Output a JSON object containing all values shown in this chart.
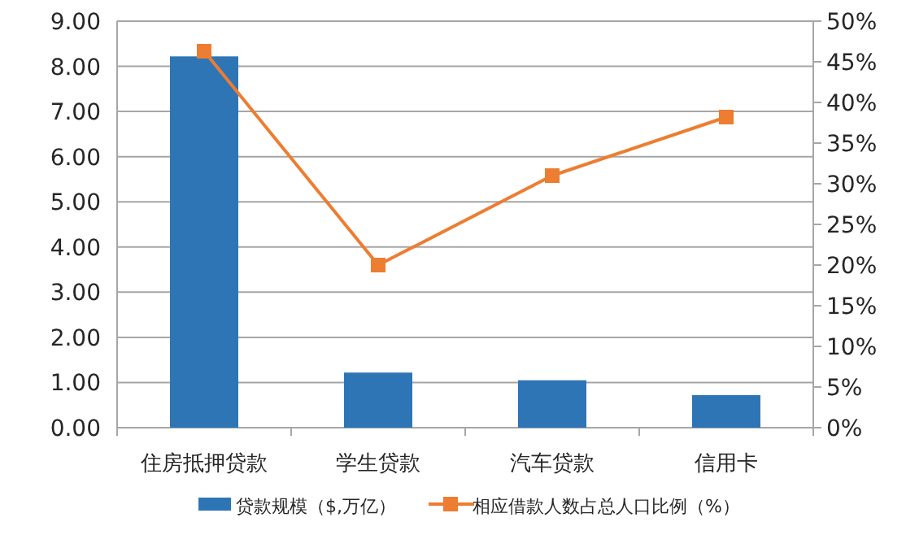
{
  "chart_data": {
    "type": "bar",
    "categories": [
      "住房抵押贷款",
      "学生贷款",
      "汽车贷款",
      "信用卡"
    ],
    "series": [
      {
        "name": "贷款规模（$,万亿）",
        "color": "#2e75b6",
        "values": [
          8.22,
          1.22,
          1.05,
          0.72
        ]
      },
      {
        "name": "相应借款人数占总人口比例（%）",
        "type": "line",
        "axis": "y2",
        "color": "#ed7d31",
        "marker": "square",
        "values": [
          46.3,
          20,
          31,
          38.2
        ]
      }
    ],
    "ylim": [
      0,
      9
    ],
    "yticks": [
      {
        "value": 0,
        "label": "0.00"
      },
      {
        "value": 1,
        "label": "1.00"
      },
      {
        "value": 2,
        "label": "2.00"
      },
      {
        "value": 3,
        "label": "3.00"
      },
      {
        "value": 4,
        "label": "4.00"
      },
      {
        "value": 5,
        "label": "5.00"
      },
      {
        "value": 6,
        "label": "6.00"
      },
      {
        "value": 7,
        "label": "7.00"
      },
      {
        "value": 8,
        "label": "8.00"
      },
      {
        "value": 9,
        "label": "9.00"
      }
    ],
    "y2lim": [
      0,
      50
    ],
    "y2ticks": [
      {
        "value": 0,
        "label": "0%"
      },
      {
        "value": 5,
        "label": "5%"
      },
      {
        "value": 10,
        "label": "10%"
      },
      {
        "value": 15,
        "label": "15%"
      },
      {
        "value": 20,
        "label": "20%"
      },
      {
        "value": 25,
        "label": "25%"
      },
      {
        "value": 30,
        "label": "30%"
      },
      {
        "value": 35,
        "label": "35%"
      },
      {
        "value": 40,
        "label": "40%"
      },
      {
        "value": 45,
        "label": "45%"
      },
      {
        "value": 50,
        "label": "50%"
      }
    ],
    "grid": "y",
    "legend": "bottom"
  }
}
